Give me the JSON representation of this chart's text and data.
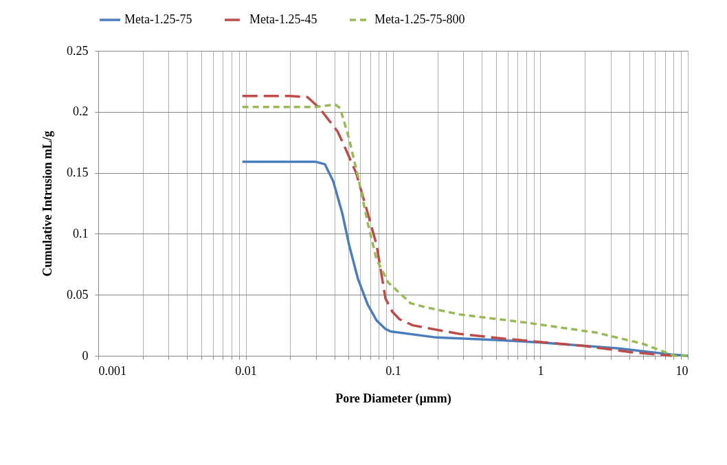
{
  "chart_data": {
    "type": "line",
    "xlabel": "Pore Diameter (µmm)",
    "ylabel": "Cumulative Intrusion mL/g",
    "log": "x",
    "grid": true,
    "legend": "top",
    "xlim": [
      0.001,
      10
    ],
    "ylim": [
      0,
      0.25
    ],
    "xticks": [
      0.001,
      {
        "value": 0.002,
        "label": null
      },
      {
        "value": 0.003,
        "label": null
      },
      {
        "value": 0.004,
        "label": null
      },
      {
        "value": 0.005,
        "label": null
      },
      {
        "value": 0.006,
        "label": null
      },
      {
        "value": 0.007,
        "label": null
      },
      {
        "value": 0.008,
        "label": null
      },
      {
        "value": 0.009,
        "label": null
      },
      0.01,
      {
        "value": 0.02,
        "label": null
      },
      {
        "value": 0.03,
        "label": null
      },
      {
        "value": 0.04,
        "label": null
      },
      {
        "value": 0.05,
        "label": null
      },
      {
        "value": 0.06,
        "label": null
      },
      {
        "value": 0.07,
        "label": null
      },
      {
        "value": 0.08,
        "label": null
      },
      {
        "value": 0.09,
        "label": null
      },
      0.1,
      {
        "value": 0.2,
        "label": null
      },
      {
        "value": 0.3,
        "label": null
      },
      {
        "value": 0.4,
        "label": null
      },
      {
        "value": 0.5,
        "label": null
      },
      {
        "value": 0.6,
        "label": null
      },
      {
        "value": 0.7,
        "label": null
      },
      {
        "value": 0.8,
        "label": null
      },
      {
        "value": 0.9,
        "label": null
      },
      1,
      {
        "value": 2,
        "label": null
      },
      {
        "value": 3,
        "label": null
      },
      {
        "value": 4,
        "label": null
      },
      {
        "value": 5,
        "label": null
      },
      {
        "value": 6,
        "label": null
      },
      {
        "value": 7,
        "label": null
      },
      {
        "value": 8,
        "label": null
      },
      {
        "value": 9,
        "label": null
      },
      10
    ],
    "yticks": [
      0,
      0.05,
      0.1,
      0.15,
      0.2,
      0.25
    ],
    "series": [
      {
        "name": "Meta-1.25-75",
        "color": "#4a7ebb",
        "line_style": "solid",
        "x": [
          0.0095,
          0.02,
          0.03,
          0.0345,
          0.0393,
          0.0452,
          0.0503,
          0.0578,
          0.0673,
          0.0773,
          0.0888,
          0.096,
          0.197,
          0.5,
          0.98,
          3.4,
          7.8,
          10
        ],
        "values": [
          0.159,
          0.159,
          0.159,
          0.157,
          0.143,
          0.117,
          0.091,
          0.063,
          0.042,
          0.029,
          0.022,
          0.02,
          0.015,
          0.013,
          0.011,
          0.006,
          0.001,
          0
        ]
      },
      {
        "name": "Meta-1.25-45",
        "color": "#be4b48",
        "line_style": "dashed",
        "x": [
          0.0095,
          0.02,
          0.0263,
          0.0317,
          0.042,
          0.0467,
          0.0561,
          0.0673,
          0.0773,
          0.0888,
          0.099,
          0.1105,
          0.136,
          0.28,
          0.575,
          2.0,
          4.1,
          7.8
        ],
        "values": [
          0.213,
          0.213,
          0.212,
          0.203,
          0.184,
          0.172,
          0.15,
          0.117,
          0.091,
          0.047,
          0.036,
          0.03,
          0.025,
          0.018,
          0.014,
          0.008,
          0.003,
          0
        ]
      },
      {
        "name": "Meta-1.25-75-800",
        "color": "#98b954",
        "line_style": "dotted",
        "x": [
          0.0095,
          0.03,
          0.0405,
          0.0438,
          0.0503,
          0.0578,
          0.0673,
          0.0773,
          0.0928,
          0.132,
          0.164,
          0.28,
          0.82,
          2.4,
          4.9,
          7.0,
          8.1,
          10
        ],
        "values": [
          0.204,
          0.204,
          0.206,
          0.203,
          0.178,
          0.147,
          0.109,
          0.079,
          0.06,
          0.043,
          0.04,
          0.034,
          0.027,
          0.019,
          0.01,
          0.003,
          0,
          0
        ]
      }
    ]
  }
}
